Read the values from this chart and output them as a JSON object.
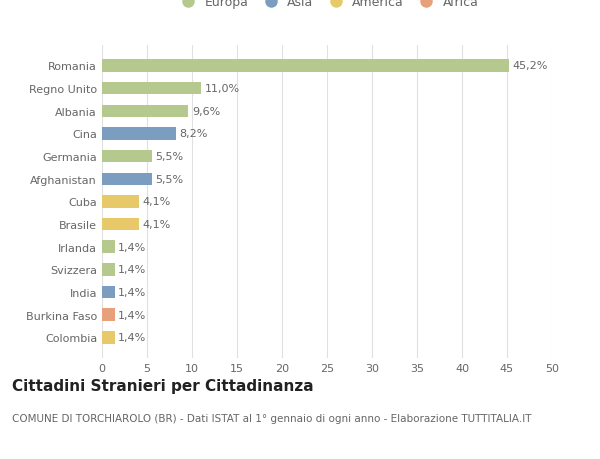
{
  "countries": [
    "Romania",
    "Regno Unito",
    "Albania",
    "Cina",
    "Germania",
    "Afghanistan",
    "Cuba",
    "Brasile",
    "Irlanda",
    "Svizzera",
    "India",
    "Burkina Faso",
    "Colombia"
  ],
  "values": [
    45.2,
    11.0,
    9.6,
    8.2,
    5.5,
    5.5,
    4.1,
    4.1,
    1.4,
    1.4,
    1.4,
    1.4,
    1.4
  ],
  "labels": [
    "45,2%",
    "11,0%",
    "9,6%",
    "8,2%",
    "5,5%",
    "5,5%",
    "4,1%",
    "4,1%",
    "1,4%",
    "1,4%",
    "1,4%",
    "1,4%",
    "1,4%"
  ],
  "continents": [
    "Europa",
    "Europa",
    "Europa",
    "Asia",
    "Europa",
    "Asia",
    "America",
    "America",
    "Europa",
    "Europa",
    "Asia",
    "Africa",
    "America"
  ],
  "continent_colors": {
    "Europa": "#b5c98e",
    "Asia": "#7b9dc0",
    "America": "#e8c96a",
    "Africa": "#e8a07a"
  },
  "legend_order": [
    "Europa",
    "Asia",
    "America",
    "Africa"
  ],
  "title": "Cittadini Stranieri per Cittadinanza",
  "subtitle": "COMUNE DI TORCHIAROLO (BR) - Dati ISTAT al 1° gennaio di ogni anno - Elaborazione TUTTITALIA.IT",
  "xlim": [
    0,
    50
  ],
  "xticks": [
    0,
    5,
    10,
    15,
    20,
    25,
    30,
    35,
    40,
    45,
    50
  ],
  "background_color": "#ffffff",
  "grid_color": "#e0e0e0",
  "bar_height": 0.55,
  "title_fontsize": 11,
  "subtitle_fontsize": 7.5,
  "label_fontsize": 8,
  "tick_fontsize": 8,
  "legend_fontsize": 9
}
